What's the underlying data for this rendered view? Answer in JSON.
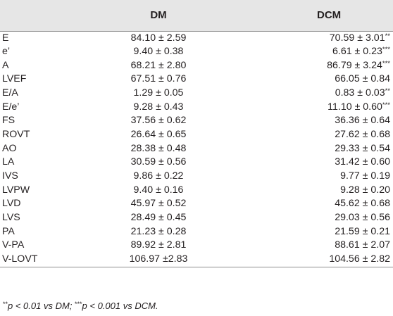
{
  "table": {
    "headers": {
      "parameter": "",
      "dm": "DM",
      "dcm": "DCM"
    },
    "rows": [
      {
        "param": "E",
        "dm": "84.10 ± 2.59",
        "dcm": "70.59 ± 3.01",
        "dcm_sig": "**"
      },
      {
        "param": "e’",
        "dm": "9.40 ± 0.38",
        "dcm": "6.61 ± 0.23",
        "dcm_sig": "***"
      },
      {
        "param": "A",
        "dm": "68.21 ± 2.80",
        "dcm": "86.79 ± 3.24",
        "dcm_sig": "***"
      },
      {
        "param": "LVEF",
        "dm": "67.51 ± 0.76",
        "dcm": "66.05 ± 0.84",
        "dcm_sig": ""
      },
      {
        "param": "E/A",
        "dm": "1.29 ± 0.05",
        "dcm": "0.83 ± 0.03",
        "dcm_sig": "**"
      },
      {
        "param": "E/e’",
        "dm": "9.28 ± 0.43",
        "dcm": "11.10 ± 0.60",
        "dcm_sig": "***"
      },
      {
        "param": "FS",
        "dm": "37.56 ± 0.62",
        "dcm": "36.36 ± 0.64",
        "dcm_sig": ""
      },
      {
        "param": "ROVT",
        "dm": "26.64 ± 0.65",
        "dcm": "27.62 ± 0.68",
        "dcm_sig": ""
      },
      {
        "param": "AO",
        "dm": "28.38 ± 0.48",
        "dcm": "29.33 ± 0.54",
        "dcm_sig": ""
      },
      {
        "param": "LA",
        "dm": "30.59 ± 0.56",
        "dcm": "31.42 ± 0.60",
        "dcm_sig": ""
      },
      {
        "param": "IVS",
        "dm": "9.86 ± 0.22",
        "dcm": "9.77 ± 0.19",
        "dcm_sig": ""
      },
      {
        "param": "LVPW",
        "dm": "9.40 ± 0.16",
        "dcm": "9.28 ± 0.20",
        "dcm_sig": ""
      },
      {
        "param": "LVD",
        "dm": "45.97 ± 0.52",
        "dcm": "45.62 ± 0.68",
        "dcm_sig": ""
      },
      {
        "param": "LVS",
        "dm": "28.49 ± 0.45",
        "dcm": "29.03 ± 0.56",
        "dcm_sig": ""
      },
      {
        "param": "PA",
        "dm": "21.23 ± 0.28",
        "dcm": "21.59 ± 0.21",
        "dcm_sig": ""
      },
      {
        "param": "V-PA",
        "dm": "89.92 ± 2.81",
        "dcm": "88.61 ± 2.07",
        "dcm_sig": ""
      },
      {
        "param": "V-LOVT",
        "dm": "106.97 ±2.83",
        "dcm": "104.56 ± 2.82",
        "dcm_sig": ""
      }
    ]
  },
  "footnote": {
    "sig1_mark": "**",
    "sig1_text": "p < 0.01 vs DM; ",
    "sig2_mark": "***",
    "sig2_text": "p < 0.001 vs DCM."
  }
}
